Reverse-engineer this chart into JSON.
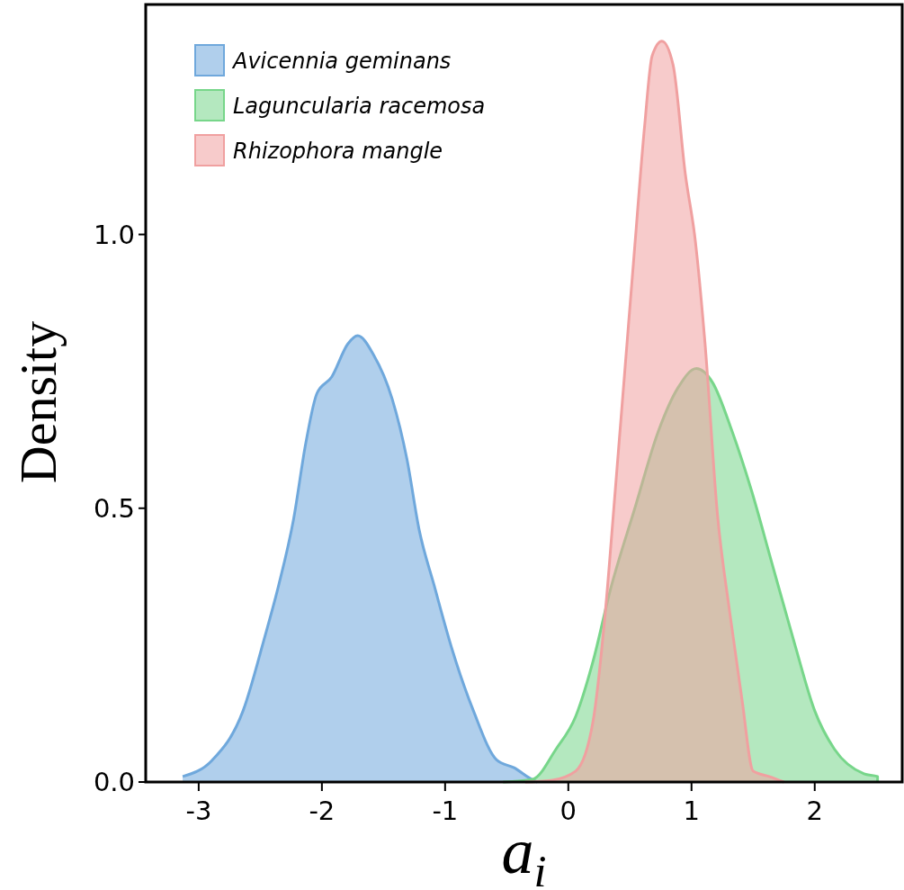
{
  "chart_data": {
    "type": "area",
    "xlabel": "a$_{i}$",
    "ylabel": "Density",
    "xlim": [
      -3.43,
      2.71
    ],
    "ylim": [
      0,
      1.42
    ],
    "xticks": [
      -3,
      -2,
      -1,
      0,
      1,
      2
    ],
    "yticks": [
      {
        "value": 0,
        "label": "0.0"
      },
      {
        "value": 0.5,
        "label": "0.5"
      },
      {
        "value": 1,
        "label": "1.0"
      }
    ],
    "legend": "top left",
    "grid": false,
    "series": [
      {
        "name": "Avicennia geminans",
        "color": "#6fa8dc",
        "x": [
          -3.13,
          -2.89,
          -2.64,
          -2.47,
          -2.35,
          -2.23,
          -2.13,
          -2.04,
          -1.92,
          -1.79,
          -1.71,
          -1.58,
          -1.43,
          -1.31,
          -1.21,
          -1.09,
          -0.94,
          -0.77,
          -0.58,
          -0.44,
          -0.29,
          -0.25
        ],
        "values": [
          0.01,
          0.04,
          0.13,
          0.26,
          0.36,
          0.48,
          0.62,
          0.71,
          0.74,
          0.8,
          0.815,
          0.78,
          0.7,
          0.59,
          0.46,
          0.36,
          0.24,
          0.13,
          0.04,
          0.026,
          0.004,
          0
        ]
      },
      {
        "name": "Laguncularia racemosa",
        "color": "#77d68a",
        "x": [
          -0.53,
          -0.29,
          -0.1,
          0.06,
          0.2,
          0.34,
          0.54,
          0.73,
          0.89,
          1.04,
          1.17,
          1.33,
          1.49,
          1.64,
          1.84,
          2.0,
          2.16,
          2.4,
          2.51,
          2.51
        ],
        "values": [
          0,
          0.005,
          0.06,
          0.12,
          0.22,
          0.35,
          0.5,
          0.64,
          0.72,
          0.755,
          0.73,
          0.64,
          0.53,
          0.41,
          0.25,
          0.13,
          0.06,
          0.015,
          0.01,
          0
        ]
      },
      {
        "name": "Rhizophora mangle",
        "color": "#f0a0a0",
        "x": [
          -0.35,
          -0.14,
          0.06,
          0.2,
          0.3,
          0.38,
          0.46,
          0.54,
          0.62,
          0.68,
          0.76,
          0.85,
          0.95,
          1.03,
          1.11,
          1.21,
          1.31,
          1.41,
          1.5,
          1.63,
          1.75
        ],
        "values": [
          0,
          0.003,
          0.02,
          0.11,
          0.31,
          0.53,
          0.755,
          0.98,
          1.2,
          1.326,
          1.353,
          1.31,
          1.11,
          0.99,
          0.8,
          0.49,
          0.31,
          0.15,
          0.02,
          0.01,
          0
        ]
      }
    ]
  }
}
